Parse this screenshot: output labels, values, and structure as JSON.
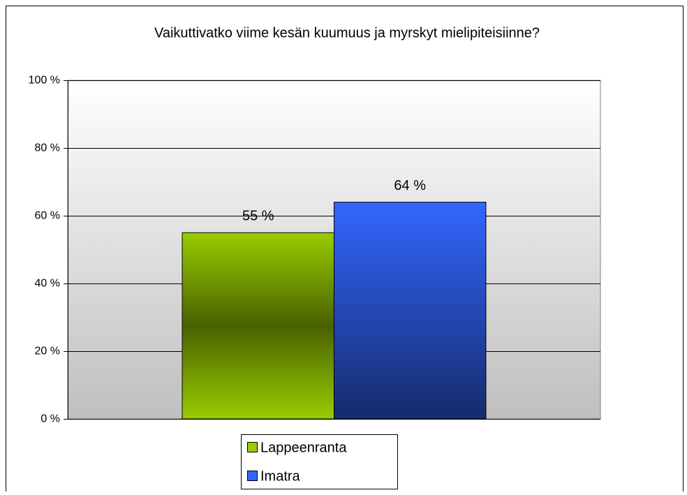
{
  "chart_data": {
    "type": "bar",
    "title": "Vaikuttivatko viime kesän kuumuus ja myrskyt mielipiteisiinne?",
    "categories": [
      null
    ],
    "series": [
      {
        "name": "Lappeenranta",
        "color": "#99cc00",
        "values": [
          55
        ],
        "value_labels": [
          "55 %"
        ]
      },
      {
        "name": "Imatra",
        "color": "#3366ff",
        "values": [
          64
        ],
        "value_labels": [
          "64 %"
        ]
      }
    ],
    "ylim": [
      0,
      100
    ],
    "yticks": [
      {
        "value": 0,
        "label": "0 %"
      },
      {
        "value": 20,
        "label": "20 %"
      },
      {
        "value": 40,
        "label": "40 %"
      },
      {
        "value": 60,
        "label": "60 %"
      },
      {
        "value": 80,
        "label": "80 %"
      },
      {
        "value": 100,
        "label": "100 %"
      }
    ],
    "grid": true,
    "legend": "bottom"
  }
}
